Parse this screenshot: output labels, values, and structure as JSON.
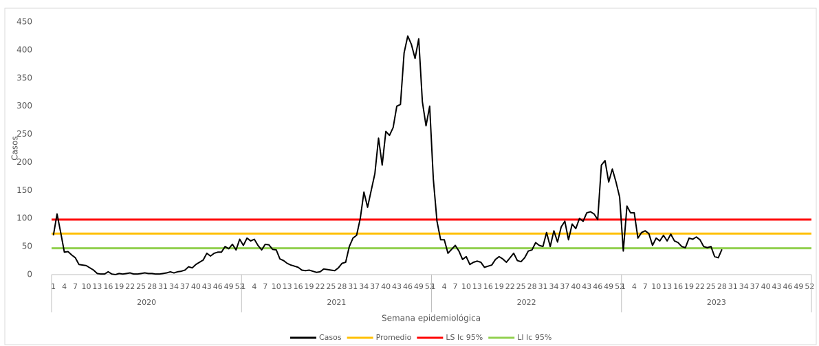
{
  "chart_data": {
    "type": "line",
    "y_label": "Casos",
    "x_label": "Semana epidemiológica",
    "ylim": [
      0,
      450
    ],
    "yticks": [
      0,
      50,
      100,
      150,
      200,
      250,
      300,
      350,
      400,
      450
    ],
    "grid": false,
    "legend": "bottom",
    "x_groups": [
      "2020",
      "2021",
      "2022",
      "2023"
    ],
    "categories": [
      1,
      null,
      null,
      4,
      null,
      null,
      7,
      null,
      null,
      10,
      null,
      null,
      13,
      null,
      null,
      16,
      null,
      null,
      19,
      null,
      null,
      22,
      null,
      null,
      25,
      null,
      null,
      28,
      null,
      null,
      31,
      null,
      null,
      34,
      null,
      null,
      37,
      null,
      null,
      40,
      null,
      null,
      43,
      null,
      null,
      46,
      null,
      null,
      49,
      null,
      null,
      52,
      1,
      null,
      null,
      4,
      null,
      null,
      7,
      null,
      null,
      10,
      null,
      null,
      13,
      null,
      null,
      16,
      null,
      null,
      19,
      null,
      null,
      22,
      null,
      null,
      25,
      null,
      null,
      28,
      null,
      null,
      31,
      null,
      null,
      34,
      null,
      null,
      37,
      null,
      null,
      40,
      null,
      null,
      43,
      null,
      null,
      46,
      null,
      null,
      49,
      null,
      null,
      52,
      1,
      null,
      null,
      4,
      null,
      null,
      7,
      null,
      null,
      10,
      null,
      null,
      13,
      null,
      null,
      16,
      null,
      null,
      19,
      null,
      null,
      22,
      null,
      null,
      25,
      null,
      null,
      28,
      null,
      null,
      31,
      null,
      null,
      34,
      null,
      null,
      37,
      null,
      null,
      40,
      null,
      null,
      43,
      null,
      null,
      46,
      null,
      null,
      49,
      null,
      null,
      52,
      1,
      null,
      null,
      4,
      null,
      null,
      7,
      null,
      null,
      10,
      null,
      null,
      13,
      null,
      null,
      16,
      null,
      null,
      19,
      null,
      null,
      22,
      null,
      null,
      25,
      null,
      null,
      28,
      null,
      null,
      31,
      null,
      null,
      34,
      null,
      null,
      37,
      null,
      null,
      40,
      null,
      null,
      43,
      null,
      null,
      46,
      null,
      null,
      49,
      null,
      null,
      52
    ],
    "series": [
      {
        "name": "Casos",
        "color": "#000000",
        "values": [
          70,
          108,
          75,
          40,
          41,
          35,
          30,
          18,
          17,
          16,
          12,
          8,
          2,
          1,
          1,
          5,
          1,
          0,
          2,
          1,
          2,
          3,
          1,
          1,
          2,
          3,
          2,
          2,
          1,
          1,
          2,
          3,
          5,
          3,
          5,
          6,
          8,
          14,
          12,
          18,
          22,
          26,
          38,
          33,
          38,
          40,
          40,
          50,
          46,
          54,
          44,
          63,
          52,
          65,
          60,
          63,
          52,
          44,
          54,
          53,
          45,
          44,
          28,
          25,
          20,
          17,
          15,
          13,
          8,
          7,
          8,
          6,
          4,
          5,
          10,
          9,
          8,
          7,
          12,
          20,
          22,
          50,
          65,
          70,
          100,
          147,
          120,
          150,
          180,
          243,
          195,
          255,
          248,
          262,
          300,
          303,
          395,
          425,
          410,
          385,
          420,
          308,
          265,
          300,
          170,
          95,
          62,
          62,
          38,
          45,
          52,
          42,
          27,
          32,
          18,
          22,
          24,
          22,
          13,
          15,
          17,
          27,
          32,
          28,
          22,
          30,
          38,
          25,
          23,
          30,
          42,
          44,
          57,
          52,
          50,
          75,
          50,
          78,
          58,
          85,
          95,
          62,
          90,
          82,
          100,
          95,
          110,
          112,
          108,
          98,
          195,
          203,
          165,
          188,
          165,
          138,
          42,
          122,
          110,
          110,
          65,
          75,
          78,
          73,
          52,
          65,
          60,
          70,
          60,
          72,
          60,
          57,
          50,
          48,
          65,
          63,
          67,
          62,
          50,
          48,
          50,
          32,
          30,
          45,
          null,
          null,
          null,
          null,
          null,
          null,
          null,
          null,
          null,
          null,
          null,
          null,
          null,
          null,
          null,
          null,
          null,
          null,
          null,
          null,
          null,
          null,
          null,
          null
        ]
      }
    ],
    "reference_lines": [
      {
        "name": "Promedio",
        "color": "#ffc000",
        "value": 73
      },
      {
        "name": "LS Ic 95%",
        "color": "#ff0000",
        "value": 98
      },
      {
        "name": "LI Ic 95%",
        "color": "#92d050",
        "value": 47
      }
    ]
  }
}
